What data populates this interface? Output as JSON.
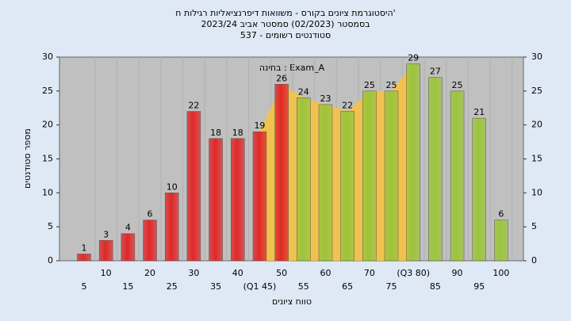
{
  "chart_data": {
    "type": "bar",
    "title_lines": [
      "היסטוגרמת ציונים בקורס - משוואות דיפרנציאליות רגילות ח'",
      "בסמסטר (02/2023) סמסטר אביב 2023/24",
      "537 - סטודנטים רשומים"
    ],
    "annotation": "בחינה : Exam_A",
    "x_label": "טווח ציונים",
    "y_label": "מספר סטודנטים",
    "categories": [
      "5",
      "10",
      "15",
      "20",
      "25",
      "30",
      "35",
      "40",
      "(Q1 45)",
      "50",
      "55",
      "60",
      "65",
      "70",
      "75",
      "(Q3 80)",
      "85",
      "90",
      "95",
      "100"
    ],
    "values": [
      1,
      3,
      4,
      6,
      10,
      22,
      18,
      18,
      19,
      26,
      24,
      23,
      22,
      25,
      25,
      29,
      27,
      25,
      21,
      6
    ],
    "colors": [
      "#e02828",
      "#e02828",
      "#e02828",
      "#e02828",
      "#e02828",
      "#e02828",
      "#e02828",
      "#e02828",
      "#e02828",
      "#e02828",
      "#9cc43c",
      "#9cc43c",
      "#9cc43c",
      "#9cc43c",
      "#9cc43c",
      "#9cc43c",
      "#9cc43c",
      "#9cc43c",
      "#9cc43c",
      "#9cc43c"
    ],
    "iqr_color": "#f5c242",
    "ylim": [
      0,
      30
    ],
    "yticks": [
      0,
      5,
      10,
      15,
      20,
      25,
      30
    ],
    "y2lim": [
      0,
      30
    ],
    "y2ticks": [
      0,
      5,
      10,
      15,
      20,
      25,
      30
    ]
  }
}
